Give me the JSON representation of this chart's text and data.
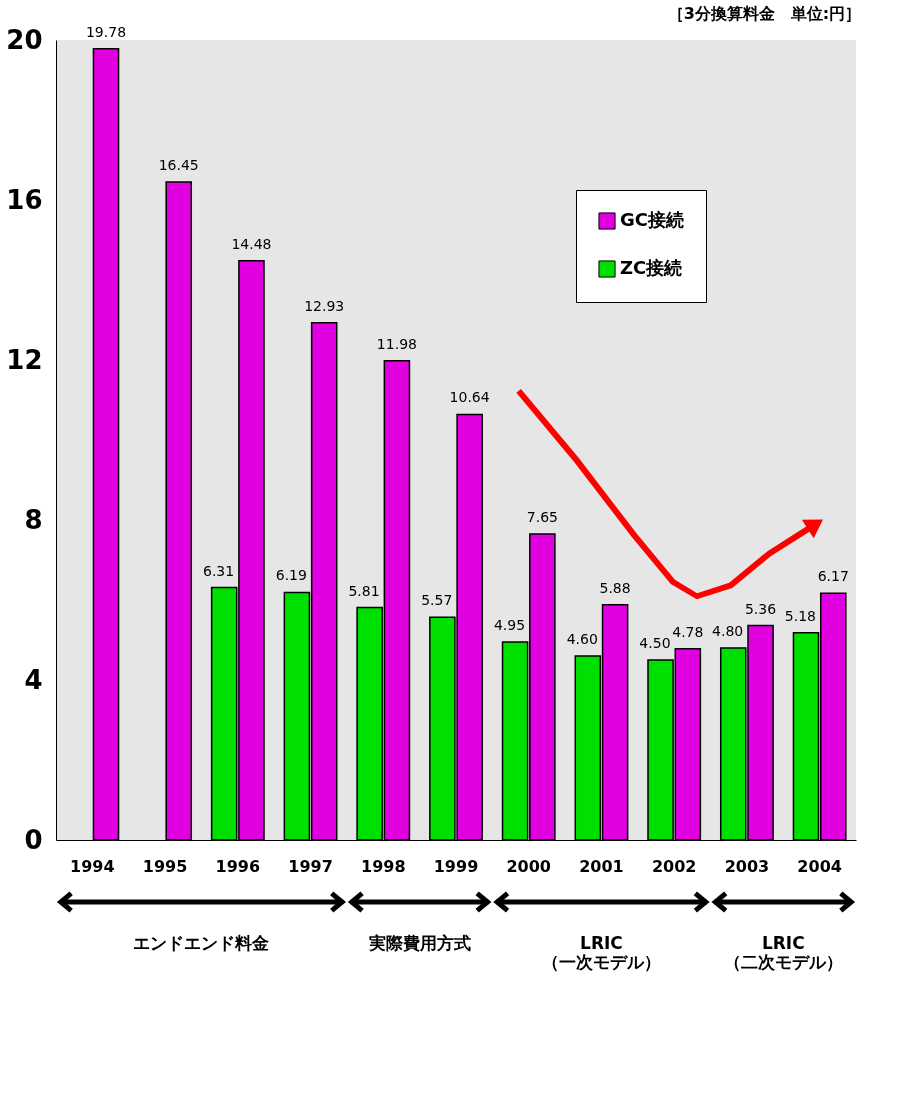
{
  "chart_data": {
    "type": "bar",
    "title": "［3分換算料金　単位:円］",
    "categories": [
      "1994",
      "1995",
      "1996",
      "1997",
      "1998",
      "1999",
      "2000",
      "2001",
      "2002",
      "2003",
      "2004"
    ],
    "series": [
      {
        "name": "GC接続",
        "color": "#e000e0",
        "values": [
          19.78,
          16.45,
          14.48,
          12.93,
          11.98,
          10.64,
          7.65,
          5.88,
          4.78,
          5.36,
          6.17
        ],
        "value_labels": [
          "19.78",
          "16.45",
          "14.48",
          "12.93",
          "11.98",
          "10.64",
          "7.65",
          "5.88",
          "4.78",
          "5.36",
          "6.17"
        ]
      },
      {
        "name": "ZC接続",
        "color": "#00e000",
        "values": [
          null,
          null,
          6.31,
          6.19,
          5.81,
          5.57,
          4.95,
          4.6,
          4.5,
          4.8,
          5.18
        ],
        "value_labels": [
          null,
          null,
          "6.31",
          "6.19",
          "5.81",
          "5.57",
          "4.95",
          "4.60",
          "4.50",
          "4.80",
          "5.18"
        ]
      }
    ],
    "ylim": [
      0,
      20
    ],
    "yticks": [
      0,
      4,
      8,
      12,
      16,
      20
    ],
    "grid": false,
    "legend": "top right",
    "annotations": [
      "エンドエンド料金",
      "実際費用方式",
      "LRIC\n（一次モデル）",
      "LRIC\n（二次モデル）"
    ]
  }
}
